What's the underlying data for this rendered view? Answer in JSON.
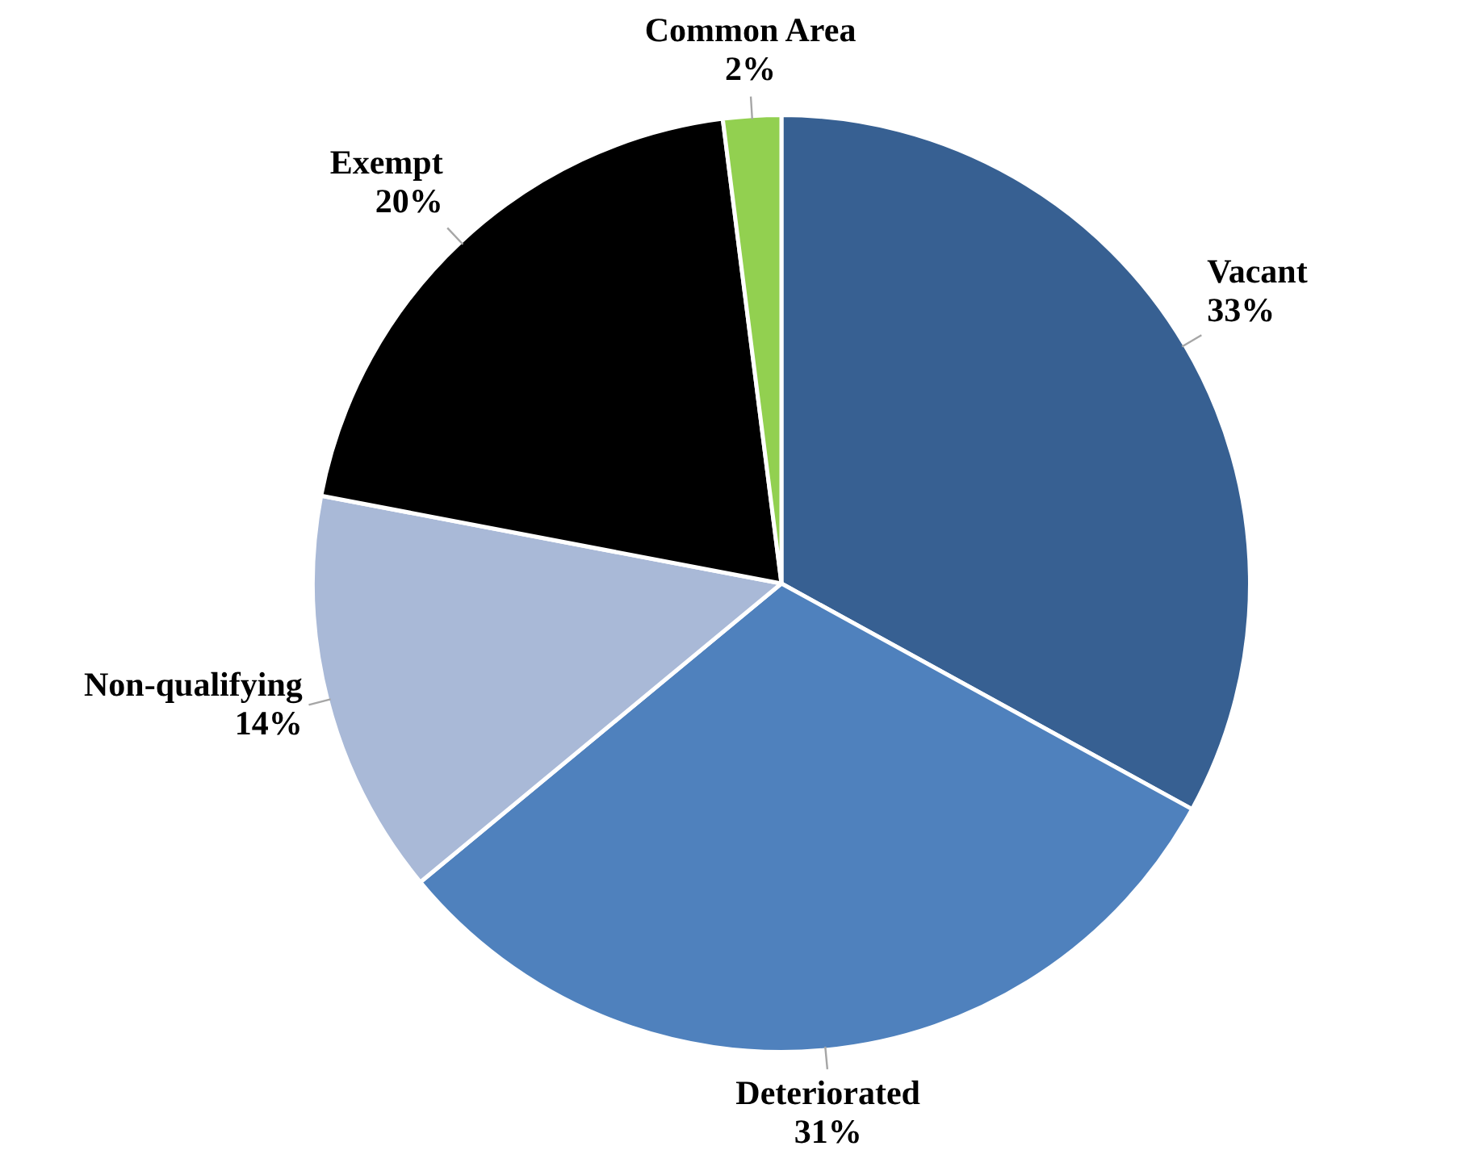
{
  "chart_data": {
    "type": "pie",
    "categories": [
      "Vacant",
      "Deteriorated",
      "Non-qualifying",
      "Exempt",
      "Common Area"
    ],
    "values": [
      33,
      31,
      14,
      20,
      2
    ],
    "colors": [
      "#376092",
      "#4f81bd",
      "#a9b9d7",
      "#000000",
      "#92d050"
    ],
    "value_labels": [
      "33%",
      "31%",
      "14%",
      "20%",
      "2%"
    ],
    "legend": false
  }
}
